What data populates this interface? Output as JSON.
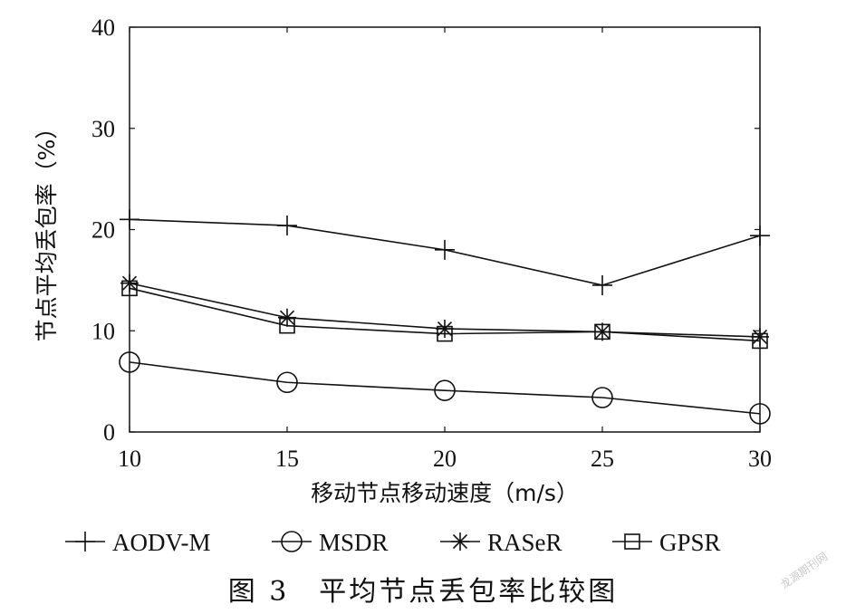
{
  "chart_data": {
    "type": "line",
    "xlabel": "移动节点移动速度（m/s）",
    "ylabel": "节点平均丢包率（%）",
    "x": [
      10,
      15,
      20,
      25,
      30
    ],
    "xlim": [
      10,
      30
    ],
    "ylim": [
      0,
      40
    ],
    "xticks": [
      "10",
      "15",
      "20",
      "25",
      "30"
    ],
    "yticks": [
      "0",
      "10",
      "20",
      "30",
      "40"
    ],
    "grid": false,
    "legend_position": "bottom",
    "series": [
      {
        "name": "AODV-M",
        "marker": "plus",
        "values": [
          21.0,
          20.4,
          18.0,
          14.5,
          19.4
        ]
      },
      {
        "name": "MSDR",
        "marker": "circle",
        "values": [
          6.9,
          4.9,
          4.1,
          3.4,
          1.8
        ]
      },
      {
        "name": "RASeR",
        "marker": "asterisk",
        "values": [
          14.7,
          11.3,
          10.2,
          9.9,
          9.4
        ]
      },
      {
        "name": "GPSR",
        "marker": "square",
        "values": [
          14.2,
          10.5,
          9.7,
          9.9,
          9.0
        ]
      }
    ],
    "color": "#111111"
  },
  "caption": "图 3　平均节点丢包率比较图",
  "watermark": "龙源期刊网"
}
